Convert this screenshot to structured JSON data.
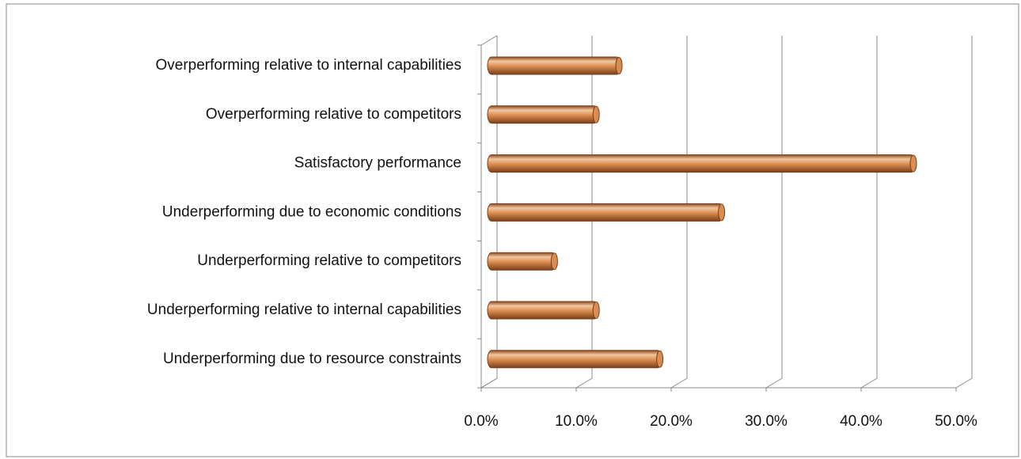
{
  "chart_data": {
    "type": "bar",
    "orientation": "horizontal",
    "categories": [
      "Overperforming relative to internal capabilities",
      "Overperforming relative to competitors",
      "Satisfactory performance",
      "Underperforming due to economic conditions",
      "Underperforming relative to competitors",
      "Underperforming relative to internal capabilities",
      "Underperforming due to resource constraints"
    ],
    "values": [
      14.0,
      11.6,
      45.0,
      24.8,
      7.2,
      11.6,
      18.3
    ],
    "color": "#c8743a",
    "xlim": [
      0,
      50
    ],
    "xticks": [
      {
        "value": 0,
        "label": "0.0%"
      },
      {
        "value": 10,
        "label": "10.0%"
      },
      {
        "value": 20,
        "label": "20.0%"
      },
      {
        "value": 30,
        "label": "30.0%"
      },
      {
        "value": 40,
        "label": "40.0%"
      },
      {
        "value": 50,
        "label": "50.0%"
      }
    ],
    "grid": true
  }
}
